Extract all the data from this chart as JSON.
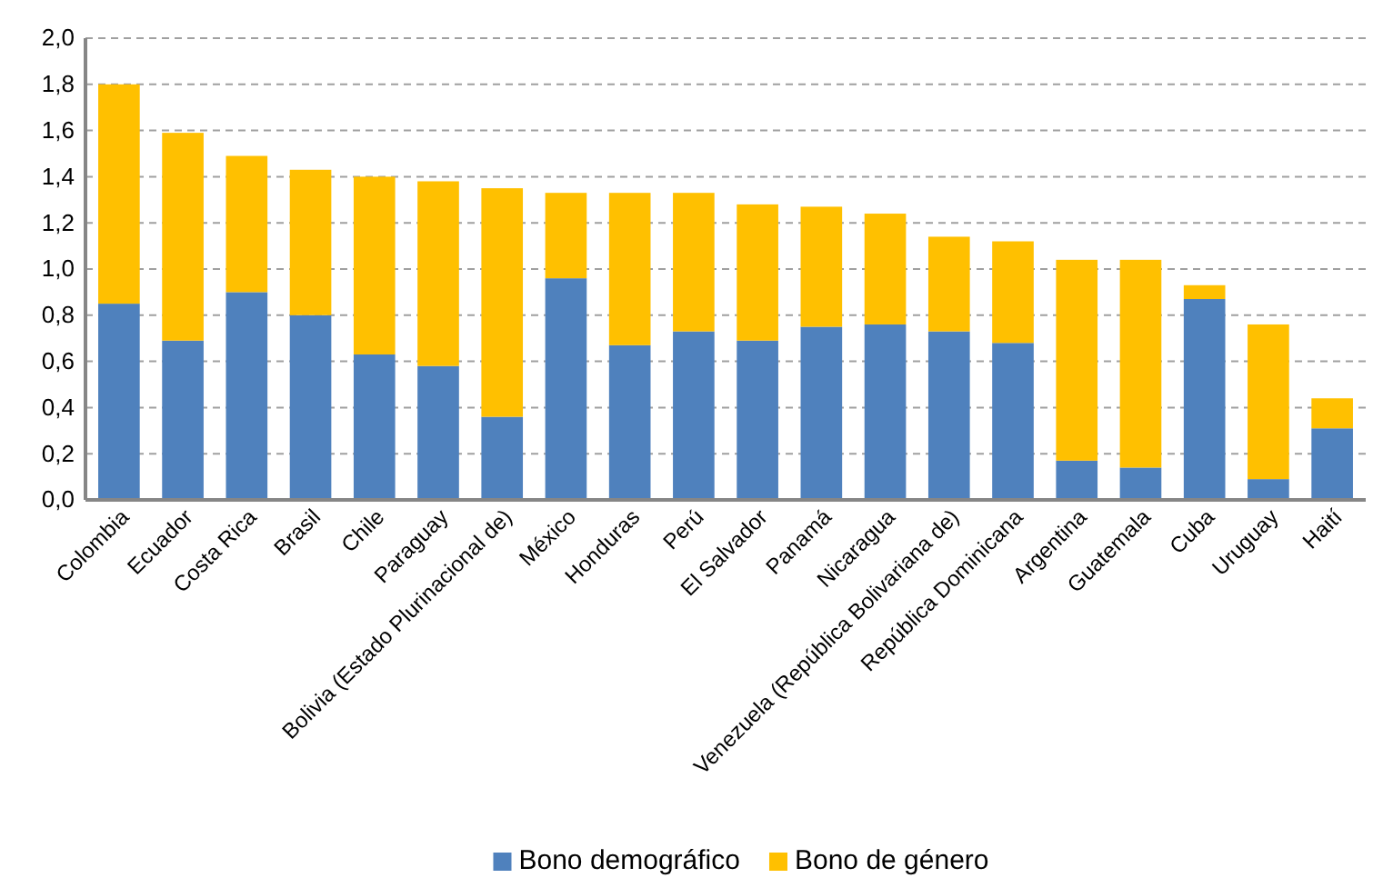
{
  "chart_data": {
    "type": "bar",
    "stacked": true,
    "categories": [
      "Colombia",
      "Ecuador",
      "Costa Rica",
      "Brasil",
      "Chile",
      "Paraguay",
      "Bolivia (Estado Plurinacional de)",
      "México",
      "Honduras",
      "Perú",
      "El Salvador",
      "Panamá",
      "Nicaragua",
      "Venezuela (República Bolivariana de)",
      "República Dominicana",
      "Argentina",
      "Guatemala",
      "Cuba",
      "Uruguay",
      "Haití"
    ],
    "series": [
      {
        "name": "Bono demográfico",
        "color": "#4f81bd",
        "values": [
          0.85,
          0.69,
          0.9,
          0.8,
          0.63,
          0.58,
          0.36,
          0.96,
          0.67,
          0.73,
          0.69,
          0.75,
          0.76,
          0.73,
          0.68,
          0.17,
          0.14,
          0.87,
          0.09,
          0.31
        ]
      },
      {
        "name": "Bono de género",
        "color": "#ffc000",
        "values": [
          0.95,
          0.9,
          0.59,
          0.63,
          0.77,
          0.8,
          0.99,
          0.37,
          0.66,
          0.6,
          0.59,
          0.52,
          0.48,
          0.41,
          0.44,
          0.87,
          0.9,
          0.06,
          0.67,
          0.13
        ]
      }
    ],
    "ylim": [
      0,
      2
    ],
    "yticks": [
      {
        "value": 0,
        "label": "0,0"
      },
      {
        "value": 0.2,
        "label": "0,2"
      },
      {
        "value": 0.4,
        "label": "0,4"
      },
      {
        "value": 0.6,
        "label": "0,6"
      },
      {
        "value": 0.8,
        "label": "0,8"
      },
      {
        "value": 1,
        "label": "1,0"
      },
      {
        "value": 1.2,
        "label": "1,2"
      },
      {
        "value": 1.4,
        "label": "1,4"
      },
      {
        "value": 1.6,
        "label": "1,6"
      },
      {
        "value": 1.8,
        "label": "1,8"
      },
      {
        "value": 2,
        "label": "2,0"
      }
    ],
    "grid": "y",
    "legend": "bottom"
  }
}
